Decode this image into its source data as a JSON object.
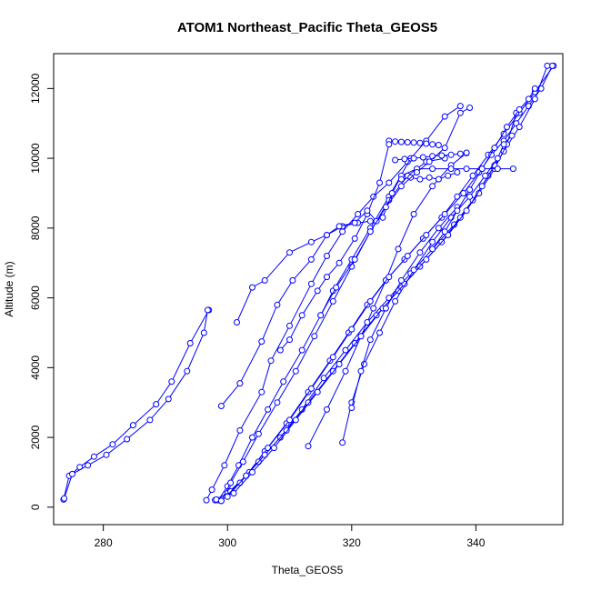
{
  "chart_data": {
    "type": "line",
    "title": "ATOM1 Northeast_Pacific Theta_GEOS5",
    "xlabel": "Theta_GEOS5",
    "ylabel": "Altitude (m)",
    "xlim": [
      272,
      354
    ],
    "ylim": [
      -500,
      13000
    ],
    "x_ticks": [
      280,
      300,
      320,
      340
    ],
    "y_ticks": [
      0,
      2000,
      4000,
      6000,
      8000,
      10000,
      12000
    ],
    "x_tick_labels": [
      "280",
      "300",
      "320",
      "340"
    ],
    "y_tick_labels": [
      "0",
      "2000",
      "4000",
      "6000",
      "8000",
      "10000",
      "12000"
    ],
    "series_color": "#0000ff",
    "marker": "open-circle",
    "grid": false,
    "legend": "none",
    "series": [
      {
        "x": [
          273.6,
          274.5,
          276.2,
          278.5,
          281.5,
          284.8,
          288.5,
          291.0,
          294.0,
          297.0
        ],
        "y": [
          220,
          900,
          1150,
          1450,
          1800,
          2350,
          2950,
          3600,
          4700,
          5650
        ]
      },
      {
        "x": [
          273.7,
          275.0,
          277.5,
          280.5,
          283.8,
          287.5,
          290.5,
          293.5,
          296.2,
          296.8
        ],
        "y": [
          250,
          950,
          1200,
          1500,
          1950,
          2500,
          3100,
          3900,
          5000,
          5650
        ]
      },
      {
        "x": [
          296.6,
          297.5,
          299.5,
          302.0,
          305.5,
          307.0,
          310.0,
          313.5,
          316.0,
          318.5,
          321.0,
          323.5,
          326.0,
          329.0,
          332.0,
          335.0,
          337.5
        ],
        "y": [
          200,
          500,
          1200,
          2200,
          3300,
          4200,
          5200,
          6400,
          7200,
          7900,
          8400,
          8900,
          9300,
          9900,
          10500,
          11200,
          11500
        ]
      },
      {
        "x": [
          298.5,
          300.0,
          301.8,
          304.0,
          306.5,
          309.0,
          312.0,
          315.0,
          317.0,
          320.0,
          323.0,
          326.0,
          329.5
        ],
        "y": [
          200,
          600,
          1200,
          2000,
          2800,
          3600,
          4500,
          5500,
          6200,
          7100,
          8000,
          8900,
          10000
        ]
      },
      {
        "x": [
          299.0,
          300.5,
          302.5,
          305.0,
          308.0,
          311.0,
          314.0,
          317.0,
          320.0,
          323.0,
          326.0,
          329.0,
          332.0,
          335.0
        ],
        "y": [
          180,
          700,
          1300,
          2100,
          3000,
          3900,
          4900,
          5900,
          6900,
          7900,
          8800,
          9500,
          9900,
          10000
        ]
      },
      {
        "x": [
          313.0,
          316.0,
          319.0,
          321.5,
          323.5,
          325.5,
          327.5,
          330.0,
          333.0,
          336.0,
          338.5
        ],
        "y": [
          1750,
          2800,
          3900,
          4900,
          5700,
          6500,
          7400,
          8400,
          9200,
          9800,
          10150
        ]
      },
      {
        "x": [
          298.0,
          300.0,
          303.0,
          306.0,
          309.5,
          313.0,
          316.5,
          319.5,
          322.5,
          325.5,
          328.5,
          331.5,
          334.5,
          337.0,
          339.5,
          342.0,
          344.5,
          347.0,
          349.5,
          352.5
        ],
        "y": [
          200,
          400,
          900,
          1600,
          2400,
          3300,
          4200,
          5000,
          5800,
          6500,
          7100,
          7700,
          8300,
          8900,
          9500,
          10100,
          10700,
          11300,
          11900,
          12650
        ]
      },
      {
        "x": [
          298.2,
          300.5,
          303.5,
          306.5,
          310.0,
          313.5,
          317.0,
          320.0,
          323.0,
          326.0,
          329.0,
          332.0,
          335.0,
          338.0,
          340.5,
          342.5,
          344.5,
          346.5,
          348.5,
          350.5,
          352.3
        ],
        "y": [
          220,
          450,
          1000,
          1700,
          2500,
          3400,
          4300,
          5100,
          5900,
          6600,
          7200,
          7800,
          8400,
          9000,
          9600,
          10100,
          10500,
          11000,
          11500,
          12000,
          12650
        ]
      },
      {
        "x": [
          299.0,
          302.0,
          305.0,
          308.5,
          312.0,
          315.5,
          319.0,
          322.5,
          326.0,
          329.5,
          333.0,
          336.5,
          339.5,
          342.0,
          344.5,
          347.0,
          349.5,
          351.5
        ],
        "y": [
          180,
          700,
          1300,
          2000,
          2800,
          3700,
          4500,
          5300,
          6000,
          6700,
          7400,
          8100,
          8800,
          9500,
          10200,
          10900,
          11700,
          12650
        ]
      },
      {
        "x": [
          300.0,
          303.0,
          306.0,
          309.5,
          313.0,
          317.0,
          320.5,
          324.0,
          327.5,
          331.0,
          334.5,
          337.5,
          340.5,
          343.0,
          345.0,
          346.5
        ],
        "y": [
          300,
          900,
          1500,
          2200,
          3000,
          3900,
          4700,
          5500,
          6200,
          6900,
          7600,
          8300,
          9000,
          9700,
          10400,
          11300
        ]
      },
      {
        "x": [
          301.0,
          304.0,
          307.5,
          311.0,
          314.5,
          318.0,
          321.5,
          325.0,
          328.5,
          332.0,
          335.5,
          338.5,
          341.0,
          343.0,
          344.5,
          345.8
        ],
        "y": [
          400,
          1000,
          1700,
          2500,
          3300,
          4100,
          4900,
          5700,
          6400,
          7100,
          7800,
          8500,
          9200,
          9800,
          10400,
          10650
        ]
      },
      {
        "x": [
          318.5,
          320.0,
          322.0,
          324.5,
          327.0,
          330.0,
          333.0,
          336.0,
          339.0,
          341.5,
          343.5
        ],
        "y": [
          1850,
          3000,
          4100,
          5000,
          5900,
          6800,
          7600,
          8300,
          8900,
          9500,
          10000
        ]
      },
      {
        "x": [
          320.0,
          321.5,
          323.0,
          325.5,
          328.0,
          331.0,
          334.0,
          337.0
        ],
        "y": [
          2850,
          3900,
          4800,
          5700,
          6500,
          7300,
          8000,
          8600
        ]
      },
      {
        "x": [
          299.0,
          302.0,
          305.5,
          308.0,
          310.5,
          313.5,
          316.0,
          318.5,
          321.0,
          323.0,
          325.0,
          326.5,
          328.0,
          330.5,
          333.0,
          336.0,
          338.5,
          341.0,
          343.5,
          346.0
        ],
        "y": [
          2900,
          3550,
          4750,
          5800,
          6500,
          7100,
          7800,
          8050,
          8150,
          8200,
          8300,
          9000,
          9500,
          9700,
          9700,
          9700,
          9700,
          9700,
          9700,
          9700
        ]
      },
      {
        "x": [
          326.0,
          327.0,
          328.0,
          329.0,
          330.0,
          331.0,
          332.0,
          333.0,
          334.0
        ],
        "y": [
          10500,
          10480,
          10470,
          10460,
          10450,
          10440,
          10420,
          10400,
          10380
        ]
      },
      {
        "x": [
          327.0,
          328.5,
          330.0,
          331.5,
          333.0,
          334.5,
          336.0,
          337.5,
          338.5
        ],
        "y": [
          9950,
          9980,
          10000,
          10030,
          10060,
          10080,
          10100,
          10130,
          10160
        ]
      },
      {
        "x": [
          328.0,
          329.5,
          331.0,
          332.5,
          334.0,
          335.5,
          337.0
        ],
        "y": [
          9400,
          9450,
          9400,
          9450,
          9400,
          9500,
          9600
        ]
      },
      {
        "x": [
          308.5,
          310.0,
          312.0,
          314.5,
          316.0,
          318.0,
          320.5,
          322.5,
          324.5,
          326.0
        ],
        "y": [
          4500,
          4800,
          5500,
          6200,
          6600,
          7000,
          7700,
          8400,
          9300,
          10400
        ]
      },
      {
        "x": [
          301.5,
          304.0,
          306.0,
          310.0,
          313.5,
          316.0,
          318.0,
          320.5,
          322.5,
          324.0
        ],
        "y": [
          5300,
          6300,
          6500,
          7300,
          7600,
          7800,
          8050,
          8150,
          8500,
          8200
        ]
      },
      {
        "x": [
          315.0,
          317.5,
          320.5,
          323.0,
          325.5,
          328.0,
          330.5,
          332.5,
          335.0,
          337.5,
          339.0
        ],
        "y": [
          5500,
          6300,
          7100,
          7900,
          8600,
          9200,
          9600,
          9900,
          10300,
          11300,
          11450
        ]
      },
      {
        "x": [
          333.0,
          335.0,
          337.0,
          339.0,
          341.0,
          343.0,
          345.0,
          347.0,
          348.5,
          349.5
        ],
        "y": [
          7400,
          7900,
          8500,
          9100,
          9700,
          10300,
          10900,
          11400,
          11700,
          12000
        ]
      }
    ]
  }
}
